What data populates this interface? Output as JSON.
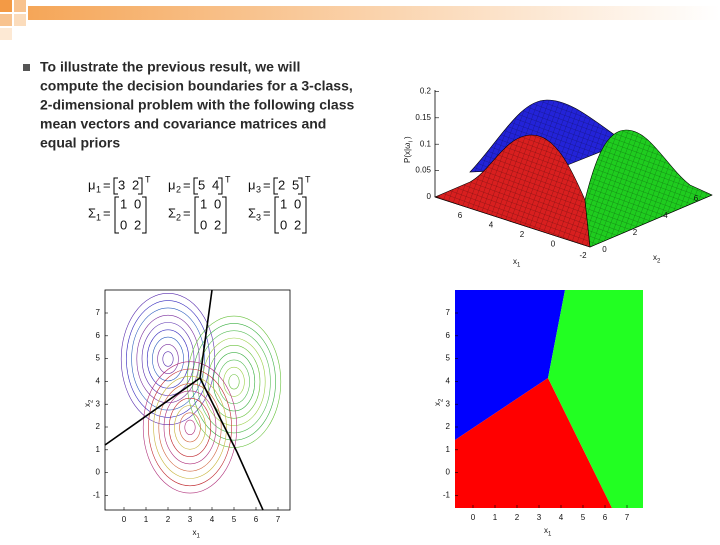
{
  "bullet": {
    "lines": [
      "To illustrate the previous result, we will",
      "compute the decision boundaries for a 3-class,",
      "2-dimensional problem with the following class",
      "mean vectors and covariance matrices and",
      "equal priors"
    ]
  },
  "equations": [
    {
      "mean": {
        "symbol": "μ",
        "sub": "1",
        "eq": "=",
        "vector": [
          "3",
          "2"
        ],
        "sup": "T"
      },
      "cov": {
        "symbol": "Σ",
        "sub": "1",
        "eq": "=",
        "matrix": [
          [
            "1",
            "0"
          ],
          [
            "0",
            "2"
          ]
        ]
      }
    },
    {
      "mean": {
        "symbol": "μ",
        "sub": "2",
        "eq": "=",
        "vector": [
          "5",
          "4"
        ],
        "sup": "T"
      },
      "cov": {
        "symbol": "Σ",
        "sub": "2",
        "eq": "=",
        "matrix": [
          [
            "1",
            "0"
          ],
          [
            "0",
            "2"
          ]
        ]
      }
    },
    {
      "mean": {
        "symbol": "μ",
        "sub": "3",
        "eq": "=",
        "vector": [
          "2",
          "5"
        ],
        "sup": "T"
      },
      "cov": {
        "symbol": "Σ",
        "sub": "3",
        "eq": "=",
        "matrix": [
          [
            "1",
            "0"
          ],
          [
            "0",
            "2"
          ]
        ]
      }
    }
  ],
  "surface_plot": {
    "z_label": {
      "text": "P(x|ω",
      "sub": "i",
      "close": ")"
    },
    "z_ticks": [
      "0",
      "0.05",
      "0.1",
      "0.15",
      "0.2"
    ],
    "x1_ticks": [
      "6",
      "4",
      "2",
      "0"
    ],
    "x2_ticks": [
      "-2",
      "0",
      "2",
      "4",
      "6"
    ],
    "x1_label": {
      "text": "x",
      "sub": "1"
    },
    "x2_label": {
      "text": "x",
      "sub": "2"
    }
  },
  "contour_plot": {
    "x_ticks": [
      "0",
      "1",
      "2",
      "3",
      "4",
      "5",
      "6",
      "7"
    ],
    "y_ticks": [
      "7",
      "6",
      "5",
      "4",
      "3",
      "2",
      "1",
      "0",
      "-1"
    ],
    "x_label": {
      "text": "x",
      "sub": "1"
    },
    "y_label": {
      "text": "x",
      "sub": "2"
    }
  },
  "region_plot": {
    "x_ticks": [
      "0",
      "1",
      "2",
      "3",
      "4",
      "5",
      "6",
      "7"
    ],
    "y_ticks": [
      "7",
      "6",
      "5",
      "4",
      "3",
      "2",
      "1",
      "0",
      "-1"
    ],
    "x_label": {
      "text": "x",
      "sub": "1"
    },
    "y_label": {
      "text": "x",
      "sub": "2"
    }
  }
}
